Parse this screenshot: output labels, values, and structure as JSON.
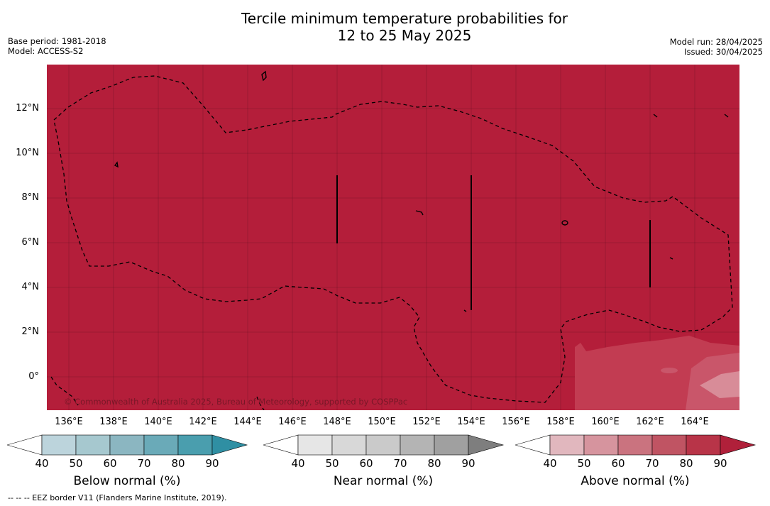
{
  "header": {
    "title_line1": "Tercile minimum temperature probabilities for",
    "title_line2": "12 to 25 May 2025",
    "base_period": "Base period: 1981-2018",
    "model": "Model: ACCESS-S2",
    "model_run": "Model run: 28/04/2025",
    "issued": "Issued: 30/04/2025"
  },
  "map": {
    "background_color": "#b41e3a",
    "lat_labels": [
      "12°N",
      "10°N",
      "8°N",
      "6°N",
      "4°N",
      "2°N",
      "0°"
    ],
    "lon_labels": [
      "136°E",
      "138°E",
      "140°E",
      "142°E",
      "144°E",
      "146°E",
      "148°E",
      "150°E",
      "152°E",
      "154°E",
      "156°E",
      "158°E",
      "160°E",
      "162°E",
      "164°E"
    ],
    "copyright": "© Commonwealth of Australia 2025, Bureau of Meteorology, supported by COSPPac",
    "eez_border_style": "dashed-black"
  },
  "colorbars": [
    {
      "id": "below",
      "title": "Below normal (%)",
      "ticks": [
        "40",
        "50",
        "60",
        "70",
        "80",
        "90"
      ],
      "colors": [
        "#ffffff",
        "#bcd4dc",
        "#a6c8cf",
        "#8bb6c1",
        "#6aaab8",
        "#4a9eae",
        "#2f8fa3"
      ]
    },
    {
      "id": "near",
      "title": "Near normal (%)",
      "ticks": [
        "40",
        "50",
        "60",
        "70",
        "80",
        "90"
      ],
      "colors": [
        "#ffffff",
        "#e6e6e6",
        "#d8d8d8",
        "#cacaca",
        "#b4b4b4",
        "#a0a0a0",
        "#7e7e7e"
      ]
    },
    {
      "id": "above",
      "title": "Above normal (%)",
      "ticks": [
        "40",
        "50",
        "60",
        "70",
        "80",
        "90"
      ],
      "colors": [
        "#ffffff",
        "#e1b7be",
        "#d6949e",
        "#ca737f",
        "#c05463",
        "#b83448",
        "#b0203a"
      ]
    }
  ],
  "footer": {
    "eez_note": "--  --  -- EEZ border V11 (Flanders Marine Institute, 2019)."
  }
}
